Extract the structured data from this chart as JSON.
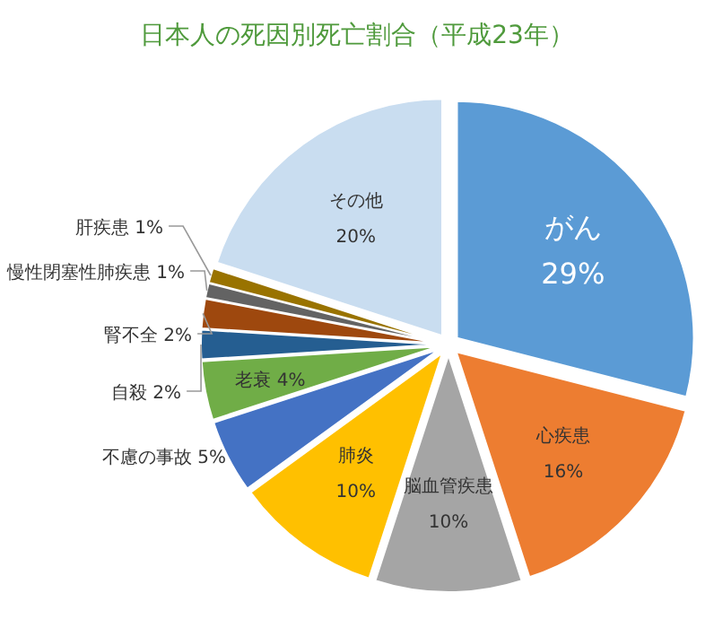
{
  "chart_data": {
    "type": "pie",
    "title": "日本人の死因別死亡割合（平成23年）",
    "categories": [
      "がん",
      "心疾患",
      "脳血管疾患",
      "肺炎",
      "不慮の事故",
      "老衰",
      "自殺",
      "腎不全",
      "慢性閉塞性肺疾患",
      "肝疾患",
      "その他"
    ],
    "values": [
      29,
      16,
      10,
      10,
      5,
      4,
      2,
      2,
      1,
      1,
      20
    ],
    "colors": [
      "#5b9bd5",
      "#ed7d31",
      "#a5a5a5",
      "#ffc000",
      "#4472c4",
      "#70ad47",
      "#255e91",
      "#9e480e",
      "#636363",
      "#997300",
      "#c9ddf0"
    ],
    "value_labels": [
      "29%",
      "16%",
      "10%",
      "10%",
      "5%",
      "4%",
      "2%",
      "2%",
      "1%",
      "1%",
      "20%"
    ]
  }
}
